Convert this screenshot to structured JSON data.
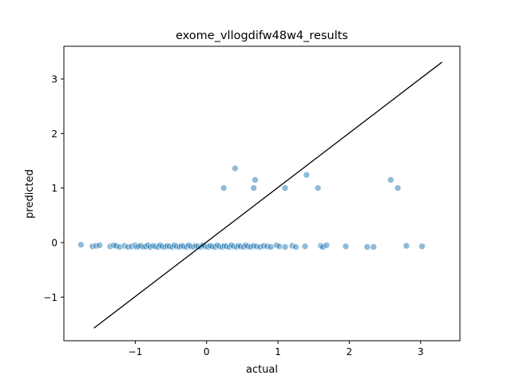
{
  "chart_data": {
    "type": "scatter",
    "title": "exome_vllogdifw48w4_results",
    "xlabel": "actual",
    "ylabel": "predicted",
    "xlim": [
      -2.0,
      3.55
    ],
    "ylim": [
      -1.8,
      3.6
    ],
    "x_ticks": [
      -1,
      0,
      1,
      2,
      3
    ],
    "y_ticks": [
      -1,
      0,
      1,
      2,
      3
    ],
    "x_tick_labels": [
      "−1",
      "0",
      "1",
      "2",
      "3"
    ],
    "y_tick_labels": [
      "−1",
      "0",
      "1",
      "2",
      "3"
    ],
    "grid": false,
    "point_color": "#1f77b4",
    "point_opacity": 0.5,
    "reference_line": {
      "color": "#000000",
      "x": [
        -1.58,
        3.3
      ],
      "y": [
        -1.57,
        3.31
      ]
    },
    "points": [
      {
        "x": -1.76,
        "y": -0.04
      },
      {
        "x": -1.6,
        "y": -0.07
      },
      {
        "x": -1.55,
        "y": -0.06
      },
      {
        "x": -1.5,
        "y": -0.05
      },
      {
        "x": -1.35,
        "y": -0.07
      },
      {
        "x": -1.3,
        "y": -0.05
      },
      {
        "x": -1.27,
        "y": -0.06
      },
      {
        "x": -1.22,
        "y": -0.08
      },
      {
        "x": -1.15,
        "y": -0.06
      },
      {
        "x": -1.1,
        "y": -0.08
      },
      {
        "x": -1.05,
        "y": -0.07
      },
      {
        "x": -1.0,
        "y": -0.05
      },
      {
        "x": -0.98,
        "y": -0.08
      },
      {
        "x": -0.95,
        "y": -0.07
      },
      {
        "x": -0.92,
        "y": -0.06
      },
      {
        "x": -0.88,
        "y": -0.08
      },
      {
        "x": -0.85,
        "y": -0.07
      },
      {
        "x": -0.82,
        "y": -0.05
      },
      {
        "x": -0.79,
        "y": -0.08
      },
      {
        "x": -0.75,
        "y": -0.06
      },
      {
        "x": -0.72,
        "y": -0.07
      },
      {
        "x": -0.68,
        "y": -0.08
      },
      {
        "x": -0.65,
        "y": -0.05
      },
      {
        "x": -0.62,
        "y": -0.07
      },
      {
        "x": -0.58,
        "y": -0.08
      },
      {
        "x": -0.55,
        "y": -0.06
      },
      {
        "x": -0.52,
        "y": -0.07
      },
      {
        "x": -0.48,
        "y": -0.08
      },
      {
        "x": -0.45,
        "y": -0.05
      },
      {
        "x": -0.42,
        "y": -0.07
      },
      {
        "x": -0.38,
        "y": -0.08
      },
      {
        "x": -0.35,
        "y": -0.06
      },
      {
        "x": -0.32,
        "y": -0.07
      },
      {
        "x": -0.28,
        "y": -0.08
      },
      {
        "x": -0.25,
        "y": -0.05
      },
      {
        "x": -0.22,
        "y": -0.07
      },
      {
        "x": -0.18,
        "y": -0.08
      },
      {
        "x": -0.15,
        "y": -0.06
      },
      {
        "x": -0.12,
        "y": -0.07
      },
      {
        "x": -0.08,
        "y": -0.08
      },
      {
        "x": -0.05,
        "y": -0.05
      },
      {
        "x": -0.02,
        "y": -0.07
      },
      {
        "x": 0.02,
        "y": -0.08
      },
      {
        "x": 0.05,
        "y": -0.06
      },
      {
        "x": 0.08,
        "y": -0.07
      },
      {
        "x": 0.12,
        "y": -0.08
      },
      {
        "x": 0.15,
        "y": -0.05
      },
      {
        "x": 0.18,
        "y": -0.07
      },
      {
        "x": 0.22,
        "y": -0.08
      },
      {
        "x": 0.25,
        "y": -0.06
      },
      {
        "x": 0.28,
        "y": -0.07
      },
      {
        "x": 0.32,
        "y": -0.08
      },
      {
        "x": 0.35,
        "y": -0.05
      },
      {
        "x": 0.38,
        "y": -0.07
      },
      {
        "x": 0.42,
        "y": -0.08
      },
      {
        "x": 0.45,
        "y": -0.06
      },
      {
        "x": 0.48,
        "y": -0.07
      },
      {
        "x": 0.52,
        "y": -0.08
      },
      {
        "x": 0.55,
        "y": -0.05
      },
      {
        "x": 0.58,
        "y": -0.07
      },
      {
        "x": 0.62,
        "y": -0.08
      },
      {
        "x": 0.66,
        "y": -0.06
      },
      {
        "x": 0.7,
        "y": -0.07
      },
      {
        "x": 0.75,
        "y": -0.08
      },
      {
        "x": 0.8,
        "y": -0.06
      },
      {
        "x": 0.85,
        "y": -0.07
      },
      {
        "x": 0.9,
        "y": -0.08
      },
      {
        "x": 0.98,
        "y": -0.05
      },
      {
        "x": 1.02,
        "y": -0.07
      },
      {
        "x": 1.1,
        "y": -0.08
      },
      {
        "x": 1.2,
        "y": -0.06
      },
      {
        "x": 1.25,
        "y": -0.08
      },
      {
        "x": 1.38,
        "y": -0.07
      },
      {
        "x": 1.6,
        "y": -0.06
      },
      {
        "x": 1.63,
        "y": -0.08
      },
      {
        "x": 1.68,
        "y": -0.05
      },
      {
        "x": 1.95,
        "y": -0.07
      },
      {
        "x": 2.25,
        "y": -0.08
      },
      {
        "x": 2.34,
        "y": -0.08
      },
      {
        "x": 2.8,
        "y": -0.06
      },
      {
        "x": 3.02,
        "y": -0.07
      },
      {
        "x": 0.24,
        "y": 1.0
      },
      {
        "x": 0.4,
        "y": 1.36
      },
      {
        "x": 0.66,
        "y": 1.0
      },
      {
        "x": 0.68,
        "y": 1.15
      },
      {
        "x": 1.1,
        "y": 1.0
      },
      {
        "x": 1.4,
        "y": 1.24
      },
      {
        "x": 1.56,
        "y": 1.0
      },
      {
        "x": 2.58,
        "y": 1.15
      },
      {
        "x": 2.68,
        "y": 1.0
      }
    ]
  }
}
